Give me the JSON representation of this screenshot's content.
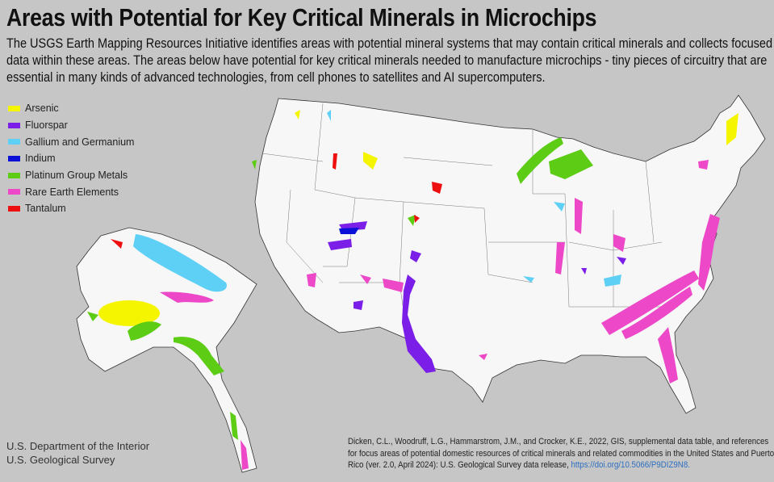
{
  "title": "Areas with Potential for Key Critical Minerals in Microchips",
  "subtitle": "The USGS Earth Mapping Resources Initiative identifies areas with potential mineral systems that may contain critical minerals and collects focused data within these areas. The areas below have potential for key critical minerals needed to manufacture microchips - tiny pieces of circuitry that are essential in many kinds of advanced technologies, from cell phones to satellites and AI supercomputers.",
  "legend": [
    {
      "label": "Arsenic",
      "color": "#f5f500"
    },
    {
      "label": "Fluorspar",
      "color": "#7b1ee8"
    },
    {
      "label": "Gallium and Germanium",
      "color": "#5fd0f5"
    },
    {
      "label": "Indium",
      "color": "#0a10d8"
    },
    {
      "label": "Platinum Group Metals",
      "color": "#5ccc14"
    },
    {
      "label": "Rare Earth Elements",
      "color": "#ec48c8"
    },
    {
      "label": "Tantalum",
      "color": "#ee1010"
    }
  ],
  "agency": {
    "line1": "U.S. Department of the Interior",
    "line2": "U.S. Geological Survey"
  },
  "citation": {
    "text": "Dicken, C.L., Woodruff, L.G., Hammarstrom, J.M., and Crocker, K.E., 2022, GIS, supplemental data table, and references for focus areas of potential domestic resources of critical minerals and related commodities in the United States and Puerto Rico (ver. 2.0, April 2024): U.S. Geological Survey data release,",
    "link": "https://doi.org/10.5066/P9DIZ9N8."
  },
  "map": {
    "land_color": "#f7f7f7",
    "background_color": "#c6c6c6"
  }
}
